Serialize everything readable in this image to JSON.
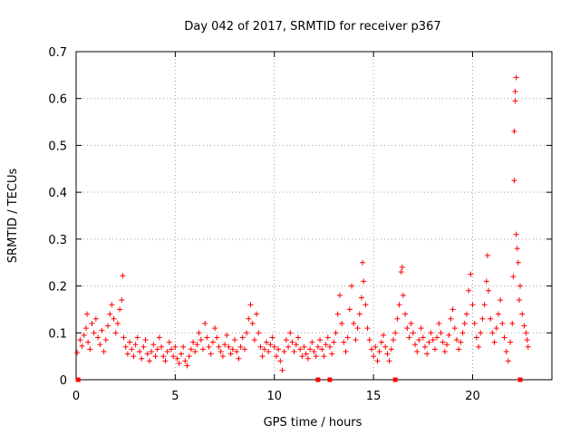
{
  "chart_data": {
    "type": "scatter",
    "title": "Day 042 of 2017, SRMTID for receiver p367",
    "xlabel": "GPS time / hours",
    "ylabel": "SRMTID / TECUs",
    "xlim": [
      0,
      24
    ],
    "ylim": [
      0,
      0.7
    ],
    "xticks": [
      0,
      5,
      10,
      15,
      20
    ],
    "yticks": [
      0,
      0.1,
      0.2,
      0.3,
      0.4,
      0.5,
      0.6,
      0.7
    ],
    "xtick_labels": [
      "0",
      "5",
      "10",
      "15",
      "20"
    ],
    "ytick_labels": [
      "0",
      "0.1",
      "0.2",
      "0.3",
      "0.4",
      "0.5",
      "0.6",
      "0.7"
    ],
    "grid": true,
    "marker": "plus",
    "color": "#ff0000",
    "baseline_markers_x": [
      0.1,
      12.2,
      12.8,
      16.1,
      22.4
    ],
    "points": [
      [
        0.05,
        0.058
      ],
      [
        0.2,
        0.085
      ],
      [
        0.3,
        0.072
      ],
      [
        0.4,
        0.095
      ],
      [
        0.5,
        0.11
      ],
      [
        0.55,
        0.14
      ],
      [
        0.6,
        0.08
      ],
      [
        0.7,
        0.065
      ],
      [
        0.8,
        0.12
      ],
      [
        0.9,
        0.1
      ],
      [
        1.0,
        0.13
      ],
      [
        1.1,
        0.09
      ],
      [
        1.2,
        0.075
      ],
      [
        1.3,
        0.105
      ],
      [
        1.4,
        0.06
      ],
      [
        1.5,
        0.085
      ],
      [
        1.6,
        0.115
      ],
      [
        1.7,
        0.14
      ],
      [
        1.8,
        0.16
      ],
      [
        1.9,
        0.13
      ],
      [
        2.0,
        0.1
      ],
      [
        2.1,
        0.12
      ],
      [
        2.2,
        0.15
      ],
      [
        2.3,
        0.17
      ],
      [
        2.35,
        0.222
      ],
      [
        2.4,
        0.09
      ],
      [
        2.5,
        0.07
      ],
      [
        2.6,
        0.055
      ],
      [
        2.7,
        0.08
      ],
      [
        2.8,
        0.065
      ],
      [
        2.9,
        0.05
      ],
      [
        3.0,
        0.075
      ],
      [
        3.1,
        0.09
      ],
      [
        3.2,
        0.06
      ],
      [
        3.3,
        0.045
      ],
      [
        3.4,
        0.07
      ],
      [
        3.5,
        0.085
      ],
      [
        3.6,
        0.055
      ],
      [
        3.7,
        0.04
      ],
      [
        3.8,
        0.06
      ],
      [
        3.9,
        0.075
      ],
      [
        4.0,
        0.05
      ],
      [
        4.1,
        0.065
      ],
      [
        4.2,
        0.09
      ],
      [
        4.3,
        0.07
      ],
      [
        4.4,
        0.05
      ],
      [
        4.5,
        0.04
      ],
      [
        4.6,
        0.06
      ],
      [
        4.7,
        0.08
      ],
      [
        4.8,
        0.065
      ],
      [
        4.9,
        0.05
      ],
      [
        5.0,
        0.07
      ],
      [
        5.1,
        0.045
      ],
      [
        5.2,
        0.035
      ],
      [
        5.3,
        0.055
      ],
      [
        5.4,
        0.07
      ],
      [
        5.5,
        0.04
      ],
      [
        5.6,
        0.03
      ],
      [
        5.7,
        0.05
      ],
      [
        5.8,
        0.065
      ],
      [
        5.9,
        0.08
      ],
      [
        6.0,
        0.06
      ],
      [
        6.1,
        0.075
      ],
      [
        6.2,
        0.1
      ],
      [
        6.3,
        0.085
      ],
      [
        6.4,
        0.065
      ],
      [
        6.5,
        0.12
      ],
      [
        6.6,
        0.09
      ],
      [
        6.7,
        0.07
      ],
      [
        6.8,
        0.055
      ],
      [
        6.9,
        0.08
      ],
      [
        7.0,
        0.11
      ],
      [
        7.1,
        0.09
      ],
      [
        7.2,
        0.07
      ],
      [
        7.3,
        0.06
      ],
      [
        7.4,
        0.05
      ],
      [
        7.5,
        0.075
      ],
      [
        7.6,
        0.095
      ],
      [
        7.7,
        0.07
      ],
      [
        7.8,
        0.055
      ],
      [
        7.9,
        0.065
      ],
      [
        8.0,
        0.085
      ],
      [
        8.1,
        0.06
      ],
      [
        8.2,
        0.045
      ],
      [
        8.3,
        0.07
      ],
      [
        8.4,
        0.09
      ],
      [
        8.5,
        0.065
      ],
      [
        8.6,
        0.1
      ],
      [
        8.7,
        0.13
      ],
      [
        8.8,
        0.16
      ],
      [
        8.9,
        0.12
      ],
      [
        9.0,
        0.085
      ],
      [
        9.1,
        0.14
      ],
      [
        9.2,
        0.1
      ],
      [
        9.3,
        0.07
      ],
      [
        9.4,
        0.05
      ],
      [
        9.5,
        0.065
      ],
      [
        9.6,
        0.08
      ],
      [
        9.7,
        0.06
      ],
      [
        9.8,
        0.075
      ],
      [
        9.9,
        0.09
      ],
      [
        10.0,
        0.07
      ],
      [
        10.1,
        0.05
      ],
      [
        10.2,
        0.065
      ],
      [
        10.3,
        0.04
      ],
      [
        10.4,
        0.02
      ],
      [
        10.5,
        0.06
      ],
      [
        10.6,
        0.085
      ],
      [
        10.7,
        0.07
      ],
      [
        10.8,
        0.1
      ],
      [
        10.9,
        0.08
      ],
      [
        11.0,
        0.06
      ],
      [
        11.1,
        0.075
      ],
      [
        11.2,
        0.09
      ],
      [
        11.3,
        0.065
      ],
      [
        11.4,
        0.05
      ],
      [
        11.5,
        0.07
      ],
      [
        11.6,
        0.055
      ],
      [
        11.7,
        0.045
      ],
      [
        11.8,
        0.065
      ],
      [
        11.9,
        0.08
      ],
      [
        12.0,
        0.06
      ],
      [
        12.1,
        0.05
      ],
      [
        12.2,
        0.07
      ],
      [
        12.3,
        0.085
      ],
      [
        12.4,
        0.065
      ],
      [
        12.5,
        0.05
      ],
      [
        12.6,
        0.075
      ],
      [
        12.7,
        0.09
      ],
      [
        12.8,
        0.07
      ],
      [
        12.9,
        0.055
      ],
      [
        13.0,
        0.08
      ],
      [
        13.1,
        0.1
      ],
      [
        13.2,
        0.14
      ],
      [
        13.3,
        0.18
      ],
      [
        13.4,
        0.12
      ],
      [
        13.5,
        0.08
      ],
      [
        13.6,
        0.06
      ],
      [
        13.7,
        0.09
      ],
      [
        13.8,
        0.15
      ],
      [
        13.9,
        0.2
      ],
      [
        14.0,
        0.12
      ],
      [
        14.1,
        0.085
      ],
      [
        14.2,
        0.11
      ],
      [
        14.3,
        0.14
      ],
      [
        14.4,
        0.175
      ],
      [
        14.45,
        0.25
      ],
      [
        14.5,
        0.21
      ],
      [
        14.6,
        0.16
      ],
      [
        14.7,
        0.11
      ],
      [
        14.8,
        0.085
      ],
      [
        14.9,
        0.065
      ],
      [
        15.0,
        0.05
      ],
      [
        15.1,
        0.07
      ],
      [
        15.2,
        0.04
      ],
      [
        15.3,
        0.06
      ],
      [
        15.4,
        0.08
      ],
      [
        15.5,
        0.095
      ],
      [
        15.6,
        0.07
      ],
      [
        15.7,
        0.055
      ],
      [
        15.8,
        0.04
      ],
      [
        15.9,
        0.065
      ],
      [
        16.0,
        0.085
      ],
      [
        16.1,
        0.1
      ],
      [
        16.2,
        0.13
      ],
      [
        16.3,
        0.16
      ],
      [
        16.4,
        0.23
      ],
      [
        16.45,
        0.24
      ],
      [
        16.5,
        0.18
      ],
      [
        16.6,
        0.14
      ],
      [
        16.7,
        0.11
      ],
      [
        16.8,
        0.09
      ],
      [
        16.9,
        0.12
      ],
      [
        17.0,
        0.1
      ],
      [
        17.1,
        0.075
      ],
      [
        17.2,
        0.06
      ],
      [
        17.3,
        0.085
      ],
      [
        17.4,
        0.11
      ],
      [
        17.5,
        0.09
      ],
      [
        17.6,
        0.07
      ],
      [
        17.7,
        0.055
      ],
      [
        17.8,
        0.08
      ],
      [
        17.9,
        0.1
      ],
      [
        18.0,
        0.085
      ],
      [
        18.1,
        0.065
      ],
      [
        18.2,
        0.09
      ],
      [
        18.3,
        0.12
      ],
      [
        18.4,
        0.1
      ],
      [
        18.5,
        0.08
      ],
      [
        18.6,
        0.06
      ],
      [
        18.7,
        0.075
      ],
      [
        18.8,
        0.095
      ],
      [
        18.9,
        0.13
      ],
      [
        19.0,
        0.15
      ],
      [
        19.1,
        0.11
      ],
      [
        19.2,
        0.085
      ],
      [
        19.3,
        0.065
      ],
      [
        19.4,
        0.08
      ],
      [
        19.5,
        0.1
      ],
      [
        19.6,
        0.12
      ],
      [
        19.7,
        0.14
      ],
      [
        19.8,
        0.19
      ],
      [
        19.9,
        0.225
      ],
      [
        20.0,
        0.16
      ],
      [
        20.1,
        0.12
      ],
      [
        20.2,
        0.09
      ],
      [
        20.3,
        0.07
      ],
      [
        20.4,
        0.1
      ],
      [
        20.5,
        0.13
      ],
      [
        20.6,
        0.16
      ],
      [
        20.7,
        0.21
      ],
      [
        20.75,
        0.265
      ],
      [
        20.8,
        0.19
      ],
      [
        20.9,
        0.13
      ],
      [
        21.0,
        0.1
      ],
      [
        21.1,
        0.08
      ],
      [
        21.2,
        0.11
      ],
      [
        21.3,
        0.14
      ],
      [
        21.4,
        0.17
      ],
      [
        21.5,
        0.12
      ],
      [
        21.6,
        0.09
      ],
      [
        21.7,
        0.06
      ],
      [
        21.8,
        0.04
      ],
      [
        21.9,
        0.08
      ],
      [
        22.0,
        0.12
      ],
      [
        22.05,
        0.22
      ],
      [
        22.1,
        0.425
      ],
      [
        22.1,
        0.53
      ],
      [
        22.15,
        0.595
      ],
      [
        22.15,
        0.615
      ],
      [
        22.2,
        0.645
      ],
      [
        22.2,
        0.31
      ],
      [
        22.25,
        0.28
      ],
      [
        22.3,
        0.25
      ],
      [
        22.35,
        0.17
      ],
      [
        22.4,
        0.2
      ],
      [
        22.5,
        0.14
      ],
      [
        22.6,
        0.115
      ],
      [
        22.7,
        0.1
      ],
      [
        22.75,
        0.085
      ],
      [
        22.8,
        0.07
      ]
    ]
  }
}
